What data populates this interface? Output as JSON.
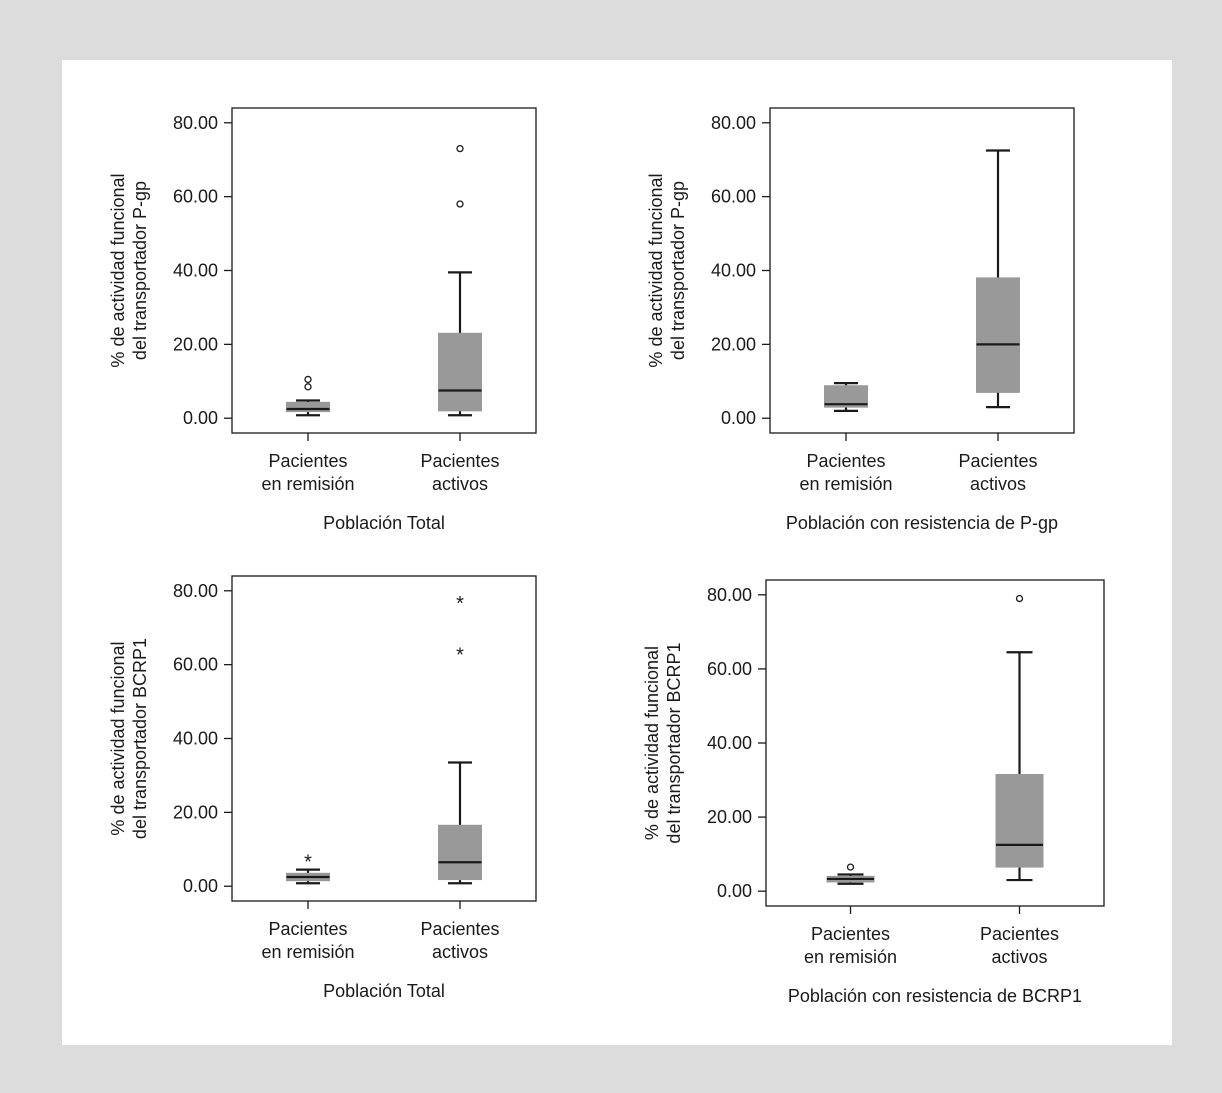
{
  "colors": {
    "page_background": "#dcdcdc",
    "panel_background": "#ffffff",
    "box_fill": "#999999",
    "line": "#1a1a1a"
  },
  "chart_data": [
    {
      "type": "box",
      "title": "",
      "xlabel": "Población Total",
      "ylabel_lines": [
        "% de actividad funcional",
        "del transportador P-gp"
      ],
      "categories": [
        [
          "Pacientes",
          "en remisión"
        ],
        [
          "Pacientes",
          "activos"
        ]
      ],
      "ylim": [
        -4,
        84
      ],
      "yticks": [
        "0.00",
        "20.00",
        "40.00",
        "60.00",
        "80.00"
      ],
      "ytick_values": [
        0,
        20,
        40,
        60,
        80
      ],
      "boxes": [
        {
          "whisker_low": 0.8,
          "q1": 1.8,
          "median": 2.5,
          "q3": 4.3,
          "whisker_high": 4.8,
          "outliers": [
            {
              "value": 8.5,
              "marker": "circle"
            },
            {
              "value": 10.5,
              "marker": "circle"
            }
          ]
        },
        {
          "whisker_low": 0.8,
          "q1": 2.0,
          "median": 7.5,
          "q3": 23.0,
          "whisker_high": 39.5,
          "outliers": [
            {
              "value": 58.0,
              "marker": "circle"
            },
            {
              "value": 73.0,
              "marker": "circle"
            }
          ]
        }
      ]
    },
    {
      "type": "box",
      "title": "",
      "xlabel": "Población con resistencia de P-gp",
      "ylabel_lines": [
        "% de actividad funcional",
        "del transportador P-gp"
      ],
      "categories": [
        [
          "Pacientes",
          "en remisión"
        ],
        [
          "Pacientes",
          "activos"
        ]
      ],
      "ylim": [
        -4,
        84
      ],
      "yticks": [
        "0.00",
        "20.00",
        "40.00",
        "60.00",
        "80.00"
      ],
      "ytick_values": [
        0,
        20,
        40,
        60,
        80
      ],
      "boxes": [
        {
          "whisker_low": 2.0,
          "q1": 3.0,
          "median": 3.8,
          "q3": 8.8,
          "whisker_high": 9.5,
          "outliers": []
        },
        {
          "whisker_low": 3.0,
          "q1": 7.0,
          "median": 20.0,
          "q3": 38.0,
          "whisker_high": 72.5,
          "outliers": []
        }
      ]
    },
    {
      "type": "box",
      "title": "",
      "xlabel": "Población Total",
      "ylabel_lines": [
        "% de actividad funcional",
        "del transportador BCRP1"
      ],
      "categories": [
        [
          "Pacientes",
          "en remisión"
        ],
        [
          "Pacientes",
          "activos"
        ]
      ],
      "ylim": [
        -4,
        84
      ],
      "yticks": [
        "0.00",
        "20.00",
        "40.00",
        "60.00",
        "80.00"
      ],
      "ytick_values": [
        0,
        20,
        40,
        60,
        80
      ],
      "boxes": [
        {
          "whisker_low": 0.8,
          "q1": 1.5,
          "median": 2.5,
          "q3": 3.5,
          "whisker_high": 4.5,
          "outliers": [
            {
              "value": 7.5,
              "marker": "star"
            }
          ]
        },
        {
          "whisker_low": 0.8,
          "q1": 1.8,
          "median": 6.5,
          "q3": 16.5,
          "whisker_high": 33.5,
          "outliers": [
            {
              "value": 63.5,
              "marker": "star"
            },
            {
              "value": 77.5,
              "marker": "star"
            }
          ]
        }
      ]
    },
    {
      "type": "box",
      "title": "",
      "xlabel": "Población con resistencia de BCRP1",
      "ylabel_lines": [
        "% de actividad funcional",
        "del transportador BCRP1"
      ],
      "categories": [
        [
          "Pacientes",
          "en remisión"
        ],
        [
          "Pacientes",
          "activos"
        ]
      ],
      "ylim": [
        -4,
        84
      ],
      "yticks": [
        "0.00",
        "20.00",
        "40.00",
        "60.00",
        "80.00"
      ],
      "ytick_values": [
        0,
        20,
        40,
        60,
        80
      ],
      "boxes": [
        {
          "whisker_low": 2.0,
          "q1": 2.5,
          "median": 3.3,
          "q3": 4.0,
          "whisker_high": 4.5,
          "outliers": [
            {
              "value": 6.5,
              "marker": "circle"
            }
          ]
        },
        {
          "whisker_low": 3.0,
          "q1": 6.5,
          "median": 12.5,
          "q3": 31.5,
          "whisker_high": 64.5,
          "outliers": [
            {
              "value": 79.0,
              "marker": "circle"
            }
          ]
        }
      ]
    }
  ]
}
